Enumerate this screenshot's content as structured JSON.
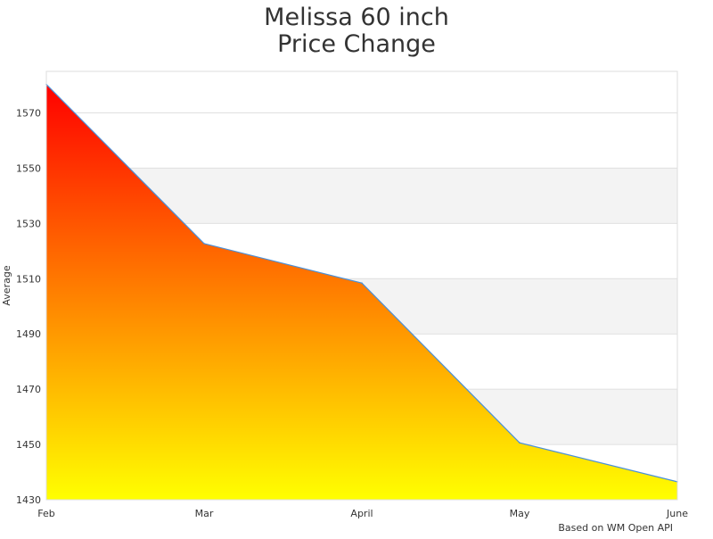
{
  "chart_data": {
    "type": "area",
    "title_lines": [
      "Melissa 60 inch",
      "Price Change"
    ],
    "xlabel": "",
    "ylabel": "Average",
    "categories": [
      "Feb",
      "Mar",
      "April",
      "May",
      "June"
    ],
    "values": [
      1580.3,
      1522.7,
      1508.4,
      1450.6,
      1436.5
    ],
    "ylim": [
      1430,
      1585
    ],
    "yticks": [
      1430,
      1450,
      1470,
      1490,
      1510,
      1530,
      1550,
      1570
    ],
    "grid": true,
    "legend": "none",
    "credit": "Based on WM Open API",
    "colors": {
      "fill_top": "#ff0000",
      "fill_bottom": "#ffff00",
      "line": "#4a90d9",
      "band": "#f3f3f3",
      "grid": "#e0e0e0",
      "text": "#333333"
    }
  }
}
